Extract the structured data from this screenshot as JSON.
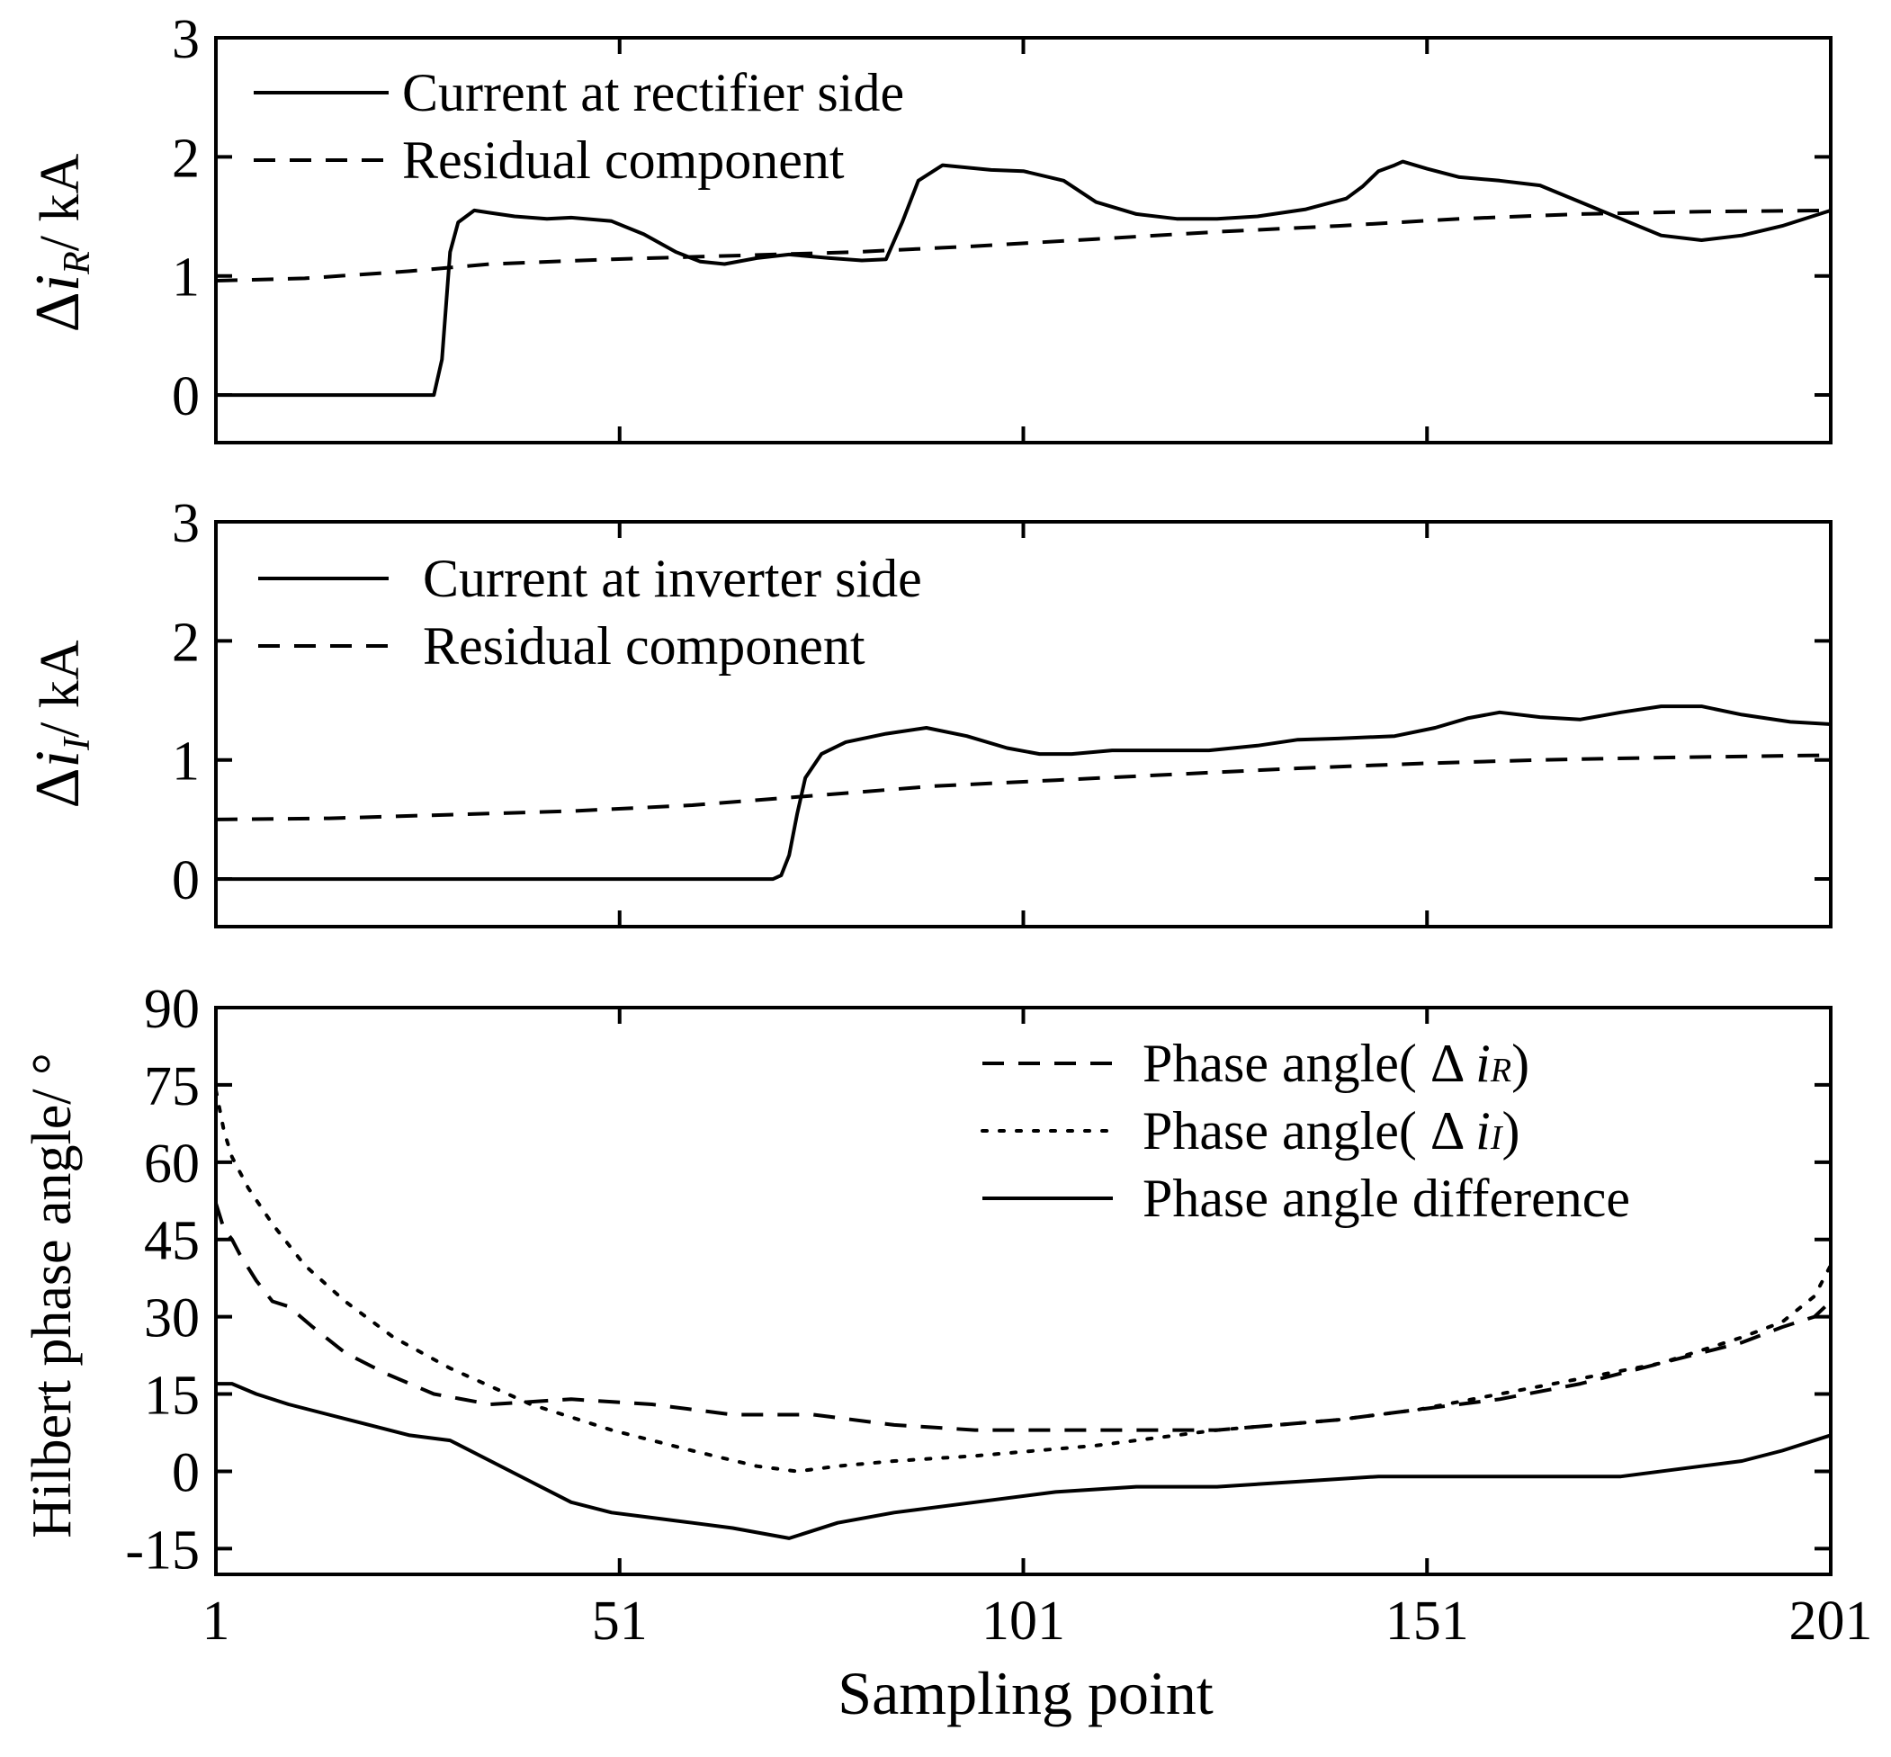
{
  "chart_data": {
    "type": "line",
    "x_axis": {
      "xlabel": "Sampling point",
      "xlim": [
        1,
        201
      ],
      "ticks": [
        1,
        51,
        101,
        151,
        201
      ],
      "tick_labels": [
        "1",
        "51",
        "101",
        "151",
        "201"
      ]
    },
    "panels": [
      {
        "ylabel": "Δi_R/ kA",
        "ylabel_parts": {
          "delta": "Δ",
          "var": "i",
          "sub": "R",
          "unit": "/ kA"
        },
        "ylim": [
          -0.4,
          3
        ],
        "yticks": [
          0,
          1,
          2,
          3
        ],
        "ytick_labels": [
          "0",
          "1",
          "2",
          "3"
        ],
        "legend_position": "top-left",
        "series": [
          {
            "name": "Current at rectifier side",
            "style": "solid",
            "x": [
              1,
              28,
              29,
              30,
              31,
              33,
              35,
              38,
              42,
              45,
              50,
              54,
              58,
              61,
              64,
              68,
              72,
              77,
              81,
              84,
              86,
              88,
              91,
              94,
              97,
              101,
              106,
              110,
              115,
              120,
              125,
              130,
              136,
              141,
              143,
              145,
              147,
              148,
              151,
              155,
              160,
              165,
              170,
              175,
              180,
              185,
              190,
              195,
              201
            ],
            "y": [
              0,
              0,
              0.3,
              1.2,
              1.45,
              1.55,
              1.53,
              1.5,
              1.48,
              1.49,
              1.46,
              1.35,
              1.2,
              1.12,
              1.1,
              1.15,
              1.18,
              1.15,
              1.13,
              1.14,
              1.45,
              1.8,
              1.93,
              1.91,
              1.89,
              1.88,
              1.8,
              1.62,
              1.52,
              1.48,
              1.48,
              1.5,
              1.56,
              1.65,
              1.75,
              1.88,
              1.93,
              1.96,
              1.9,
              1.83,
              1.8,
              1.76,
              1.62,
              1.48,
              1.34,
              1.3,
              1.34,
              1.42,
              1.55
            ]
          },
          {
            "name": "Residual component",
            "style": "dashed",
            "x": [
              1,
              12,
              25,
              35,
              50,
              65,
              80,
              95,
              110,
              125,
              140,
              155,
              170,
              185,
              201
            ],
            "y": [
              0.96,
              0.98,
              1.04,
              1.1,
              1.14,
              1.17,
              1.2,
              1.25,
              1.31,
              1.37,
              1.42,
              1.48,
              1.52,
              1.54,
              1.55
            ]
          }
        ]
      },
      {
        "ylabel": "Δi_I/ kA",
        "ylabel_parts": {
          "delta": "Δ",
          "var": "i",
          "sub": "I",
          "unit": "/ kA"
        },
        "ylim": [
          -0.4,
          3
        ],
        "yticks": [
          0,
          1,
          2,
          3
        ],
        "ytick_labels": [
          "0",
          "1",
          "2",
          "3"
        ],
        "legend_position": "top-left",
        "series": [
          {
            "name": "Current at inverter side",
            "style": "solid",
            "x": [
              1,
              70,
              71,
              72,
              73,
              74,
              76,
              79,
              84,
              89,
              94,
              99,
              103,
              107,
              112,
              118,
              124,
              130,
              135,
              140,
              147,
              152,
              156,
              160,
              165,
              170,
              175,
              180,
              185,
              190,
              196,
              201
            ],
            "y": [
              0,
              0,
              0.03,
              0.2,
              0.55,
              0.85,
              1.05,
              1.15,
              1.22,
              1.27,
              1.2,
              1.1,
              1.05,
              1.05,
              1.08,
              1.08,
              1.08,
              1.12,
              1.17,
              1.18,
              1.2,
              1.27,
              1.35,
              1.4,
              1.36,
              1.34,
              1.4,
              1.45,
              1.45,
              1.38,
              1.32,
              1.3
            ]
          },
          {
            "name": "Residual component",
            "style": "dashed",
            "x": [
              1,
              15,
              30,
              45,
              60,
              75,
              90,
              105,
              120,
              135,
              150,
              165,
              180,
              201
            ],
            "y": [
              0.5,
              0.51,
              0.54,
              0.57,
              0.62,
              0.7,
              0.78,
              0.83,
              0.88,
              0.93,
              0.97,
              1.0,
              1.02,
              1.04
            ]
          }
        ]
      },
      {
        "ylabel": "Hilbert phase angle/ °",
        "ylim": [
          -20,
          90
        ],
        "yticks": [
          90,
          75,
          60,
          45,
          30,
          15,
          0,
          -15
        ],
        "ytick_labels": [
          "90",
          "75",
          "60",
          "45",
          "30",
          "15",
          "0",
          "-15"
        ],
        "legend_position": "top-right",
        "series": [
          {
            "name": "Phase angle( Δ iR)",
            "label_parts": {
              "prefix": "Phase angle( Δ ",
              "var": "i",
              "sub": "R",
              "suffix": ")"
            },
            "style": "dashed",
            "x": [
              1,
              2,
              3,
              4,
              6,
              8,
              10,
              13,
              17,
              22,
              28,
              35,
              45,
              55,
              65,
              75,
              85,
              95,
              110,
              125,
              140,
              150,
              160,
              170,
              180,
              190,
              195,
              199,
              201
            ],
            "y": [
              52,
              47,
              45,
              42,
              37,
              33,
              32,
              28,
              23,
              19,
              15,
              13,
              14,
              13,
              11,
              11,
              9,
              8,
              8,
              8,
              10,
              12,
              14,
              17,
              21,
              25,
              28,
              30,
              33
            ]
          },
          {
            "name": "Phase angle( Δ iI)",
            "label_parts": {
              "prefix": "Phase angle( Δ ",
              "var": "i",
              "sub": "I",
              "suffix": ")"
            },
            "style": "dotted",
            "x": [
              1,
              2,
              3,
              5,
              8,
              12,
              17,
              23,
              30,
              40,
              50,
              60,
              68,
              73,
              78,
              85,
              95,
              110,
              125,
              140,
              150,
              160,
              170,
              180,
              190,
              195,
              199,
              201
            ],
            "y": [
              74,
              66,
              61,
              55,
              48,
              40,
              33,
              26,
              20,
              13,
              8,
              4,
              1,
              0,
              1,
              2,
              3,
              5,
              8,
              10,
              12,
              15,
              18,
              21,
              26,
              29,
              34,
              40
            ]
          },
          {
            "name": "Phase angle difference",
            "style": "solid",
            "x": [
              1,
              3,
              6,
              10,
              15,
              20,
              25,
              30,
              35,
              40,
              45,
              50,
              55,
              60,
              65,
              72,
              78,
              85,
              95,
              105,
              115,
              125,
              135,
              145,
              155,
              165,
              175,
              185,
              190,
              195,
              201
            ],
            "y": [
              17,
              17,
              15,
              13,
              11,
              9,
              7,
              6,
              2,
              -2,
              -6,
              -8,
              -9,
              -10,
              -11,
              -13,
              -10,
              -8,
              -6,
              -4,
              -3,
              -3,
              -2,
              -1,
              -1,
              -1,
              -1,
              1,
              2,
              4,
              7
            ]
          }
        ]
      }
    ]
  }
}
